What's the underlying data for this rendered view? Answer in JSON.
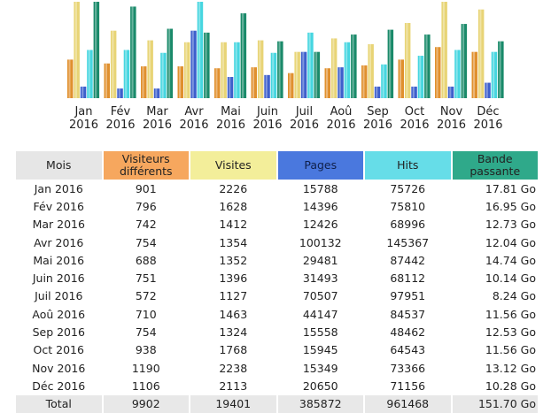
{
  "chart_data": {
    "type": "bar",
    "categories": [
      [
        "Jan",
        "2016"
      ],
      [
        "Fév",
        "2016"
      ],
      [
        "Mar",
        "2016"
      ],
      [
        "Avr",
        "2016"
      ],
      [
        "Mai",
        "2016"
      ],
      [
        "Juin",
        "2016"
      ],
      [
        "Juil",
        "2016"
      ],
      [
        "Aoû",
        "2016"
      ],
      [
        "Sep",
        "2016"
      ],
      [
        "Oct",
        "2016"
      ],
      [
        "Nov",
        "2016"
      ],
      [
        "Déc",
        "2016"
      ]
    ],
    "series": [
      {
        "color": "#e0902e",
        "values": [
          901,
          796,
          742,
          754,
          688,
          751,
          572,
          710,
          754,
          938,
          1190,
          1106
        ]
      },
      {
        "color": "#e8d476",
        "values": [
          2226,
          1628,
          1412,
          1354,
          1352,
          1396,
          1127,
          1463,
          1324,
          1768,
          2238,
          2113
        ]
      },
      {
        "color": "#3d5fcc",
        "values": [
          15788,
          14396,
          12426,
          100132,
          29481,
          31493,
          70507,
          44147,
          15558,
          15945,
          15349,
          20650
        ]
      },
      {
        "color": "#46d6e0",
        "values": [
          75726,
          75810,
          68996,
          145367,
          87442,
          68112,
          97951,
          84537,
          48462,
          64543,
          73366,
          71156
        ]
      },
      {
        "color": "#1a8a6a",
        "values": [
          17.81,
          16.95,
          12.73,
          12.04,
          14.74,
          10.14,
          8.24,
          11.56,
          12.53,
          11.56,
          13.12,
          10.28
        ]
      }
    ],
    "bar_cap_percent": [
      [
        40,
        100,
        12,
        50,
        100
      ],
      [
        36,
        70,
        10,
        50,
        95
      ],
      [
        33,
        60,
        10,
        47,
        72
      ],
      [
        33,
        58,
        70,
        100,
        68
      ],
      [
        31,
        58,
        22,
        58,
        88
      ],
      [
        32,
        60,
        24,
        47,
        59
      ],
      [
        26,
        48,
        48,
        68,
        48
      ],
      [
        31,
        62,
        32,
        58,
        66
      ],
      [
        34,
        56,
        12,
        35,
        71
      ],
      [
        40,
        78,
        12,
        44,
        66
      ],
      [
        53,
        100,
        12,
        50,
        77
      ],
      [
        48,
        92,
        16,
        48,
        59
      ]
    ]
  },
  "table": {
    "headers": [
      "Mois",
      "Visiteurs différents",
      "Visites",
      "Pages",
      "Hits",
      "Bande passante"
    ],
    "header_colors": [
      "#e6e6e6",
      "#f6a75e",
      "#f3ee9a",
      "#4a78de",
      "#66dde8",
      "#2fa98a"
    ],
    "rows": [
      [
        "Jan 2016",
        "901",
        "2226",
        "15788",
        "75726",
        "17.81 Go"
      ],
      [
        "Fév 2016",
        "796",
        "1628",
        "14396",
        "75810",
        "16.95 Go"
      ],
      [
        "Mar 2016",
        "742",
        "1412",
        "12426",
        "68996",
        "12.73 Go"
      ],
      [
        "Avr 2016",
        "754",
        "1354",
        "100132",
        "145367",
        "12.04 Go"
      ],
      [
        "Mai 2016",
        "688",
        "1352",
        "29481",
        "87442",
        "14.74 Go"
      ],
      [
        "Juin 2016",
        "751",
        "1396",
        "31493",
        "68112",
        "10.14 Go"
      ],
      [
        "Juil 2016",
        "572",
        "1127",
        "70507",
        "97951",
        "8.24 Go"
      ],
      [
        "Aoû 2016",
        "710",
        "1463",
        "44147",
        "84537",
        "11.56 Go"
      ],
      [
        "Sep 2016",
        "754",
        "1324",
        "15558",
        "48462",
        "12.53 Go"
      ],
      [
        "Oct 2016",
        "938",
        "1768",
        "15945",
        "64543",
        "11.56 Go"
      ],
      [
        "Nov 2016",
        "1190",
        "2238",
        "15349",
        "73366",
        "13.12 Go"
      ],
      [
        "Déc 2016",
        "1106",
        "2113",
        "20650",
        "71156",
        "10.28 Go"
      ]
    ],
    "total": [
      "Total",
      "9902",
      "19401",
      "385872",
      "961468",
      "151.70 Go"
    ]
  }
}
